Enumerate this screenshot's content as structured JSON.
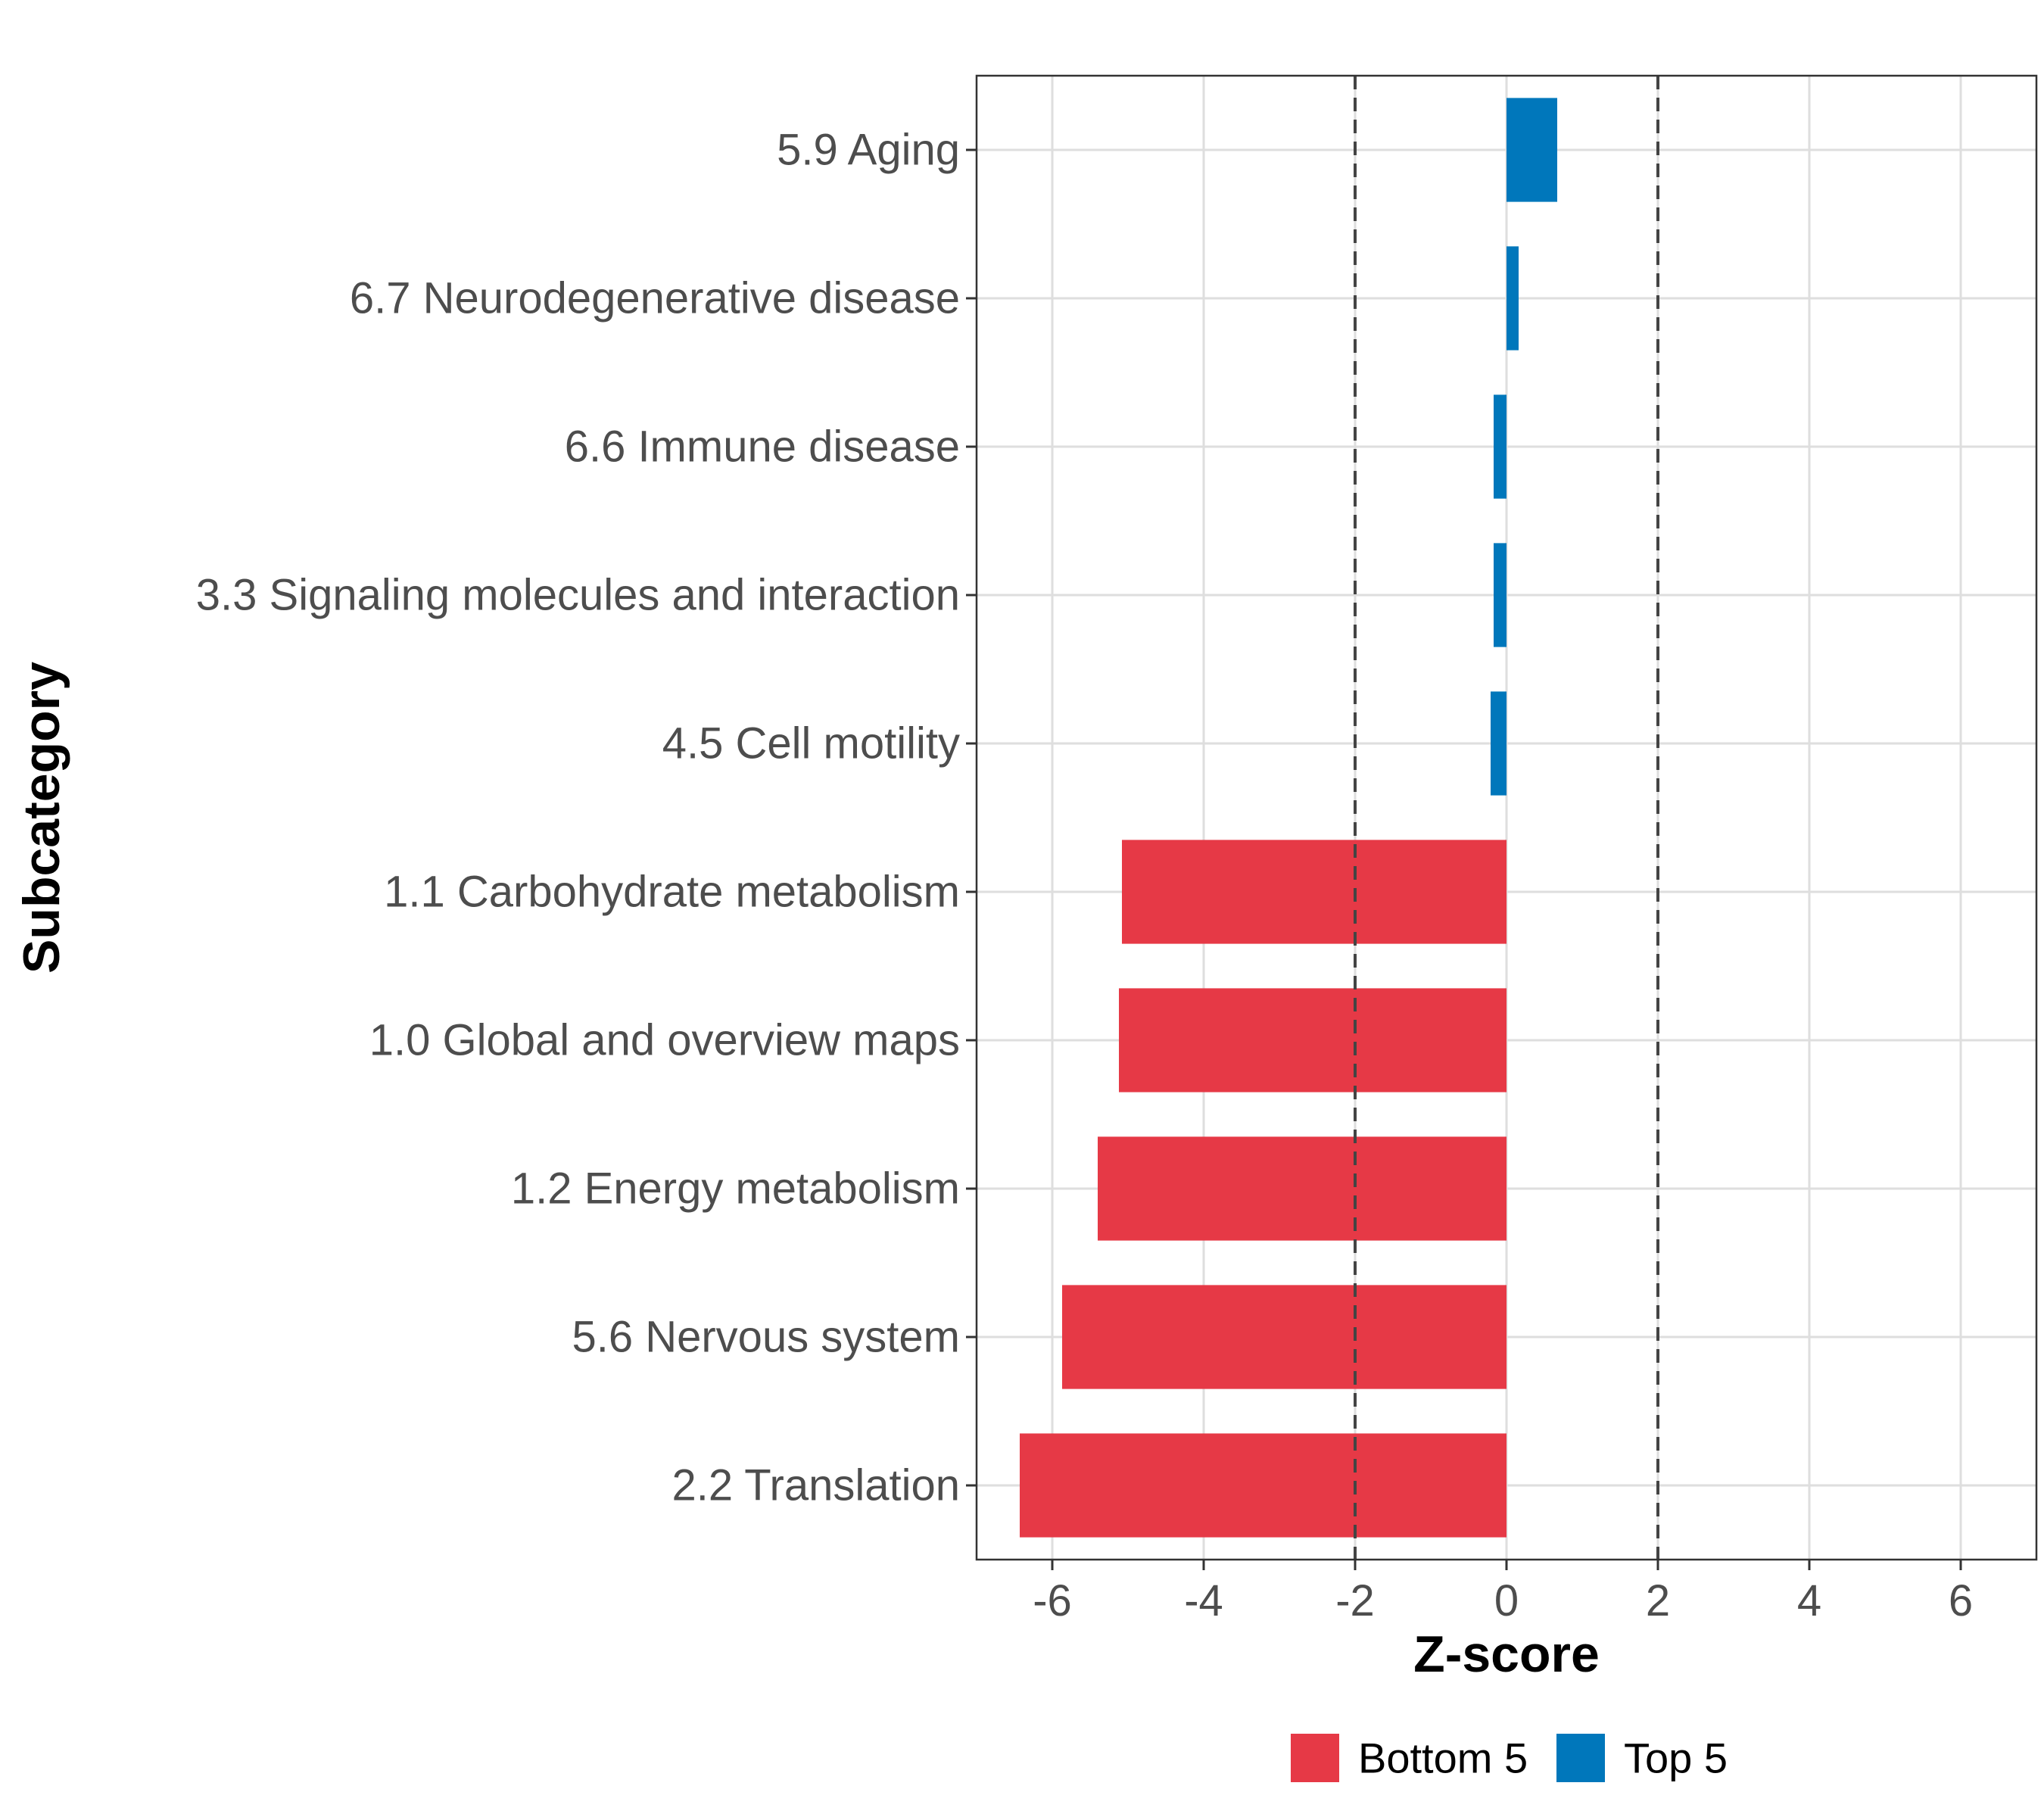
{
  "chart_data": {
    "type": "bar",
    "orientation": "horizontal",
    "title": "",
    "xlabel": "Z-score",
    "ylabel": "Subcategory",
    "xlim": [
      -7.0,
      7.0
    ],
    "xticks": [
      -6,
      -4,
      -2,
      0,
      2,
      4,
      6
    ],
    "xtick_labels": [
      "-6",
      "-4",
      "-2",
      "0",
      "2",
      "4",
      "6"
    ],
    "reference_lines": [
      -2,
      2
    ],
    "grid": true,
    "categories": [
      "5.9 Aging",
      "6.7 Neurodegenerative disease",
      "6.6 Immune disease",
      "3.3 Signaling molecules and interaction",
      "4.5 Cell motility",
      "1.1 Carbohydrate metabolism",
      "1.0 Global and overview maps",
      "1.2 Energy metabolism",
      "5.6 Nervous system",
      "2.2 Translation"
    ],
    "values": [
      0.67,
      0.16,
      -0.17,
      -0.17,
      -0.21,
      -5.08,
      -5.12,
      -5.4,
      -5.87,
      -6.43
    ],
    "groups": [
      "Top 5",
      "Top 5",
      "Top 5",
      "Top 5",
      "Top 5",
      "Bottom 5",
      "Bottom 5",
      "Bottom 5",
      "Bottom 5",
      "Bottom 5"
    ],
    "legend": {
      "position": "bottom",
      "entries": [
        {
          "label": "Bottom 5",
          "color": "#E63946"
        },
        {
          "label": "Top 5",
          "color": "#0077BB"
        }
      ]
    }
  }
}
